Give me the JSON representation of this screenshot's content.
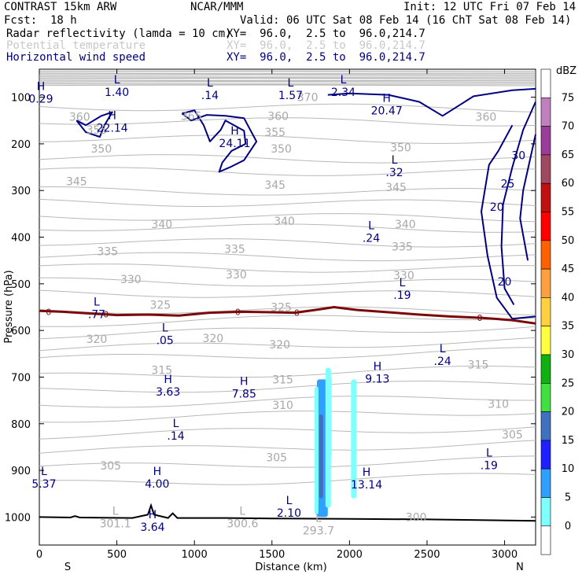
{
  "header": {
    "model": "CONTRAST 15km ARW",
    "org": "NCAR/MMM",
    "init": "Init: 12 UTC Fri 07 Feb 14",
    "fcst_label": "Fcst:",
    "fcst_value": "18 h",
    "valid": "Valid: 06 UTC Sat 08 Feb 14 (16 ChT Sat 08 Feb 14)",
    "fields": [
      {
        "name": "Radar reflectivity (lamda = 10 cm)",
        "xy": "XY=  96.0,  2.5 to  96.0,214.7",
        "color": "#000000"
      },
      {
        "name": "Potential temperature",
        "xy": "XY=  96.0,  2.5 to  96.0,214.7",
        "color": "#c8c8c8"
      },
      {
        "name": "Horizontal wind speed",
        "xy": "XY=  96.0,  2.5 to  96.0,214.7",
        "color": "#000080"
      }
    ]
  },
  "chart_data": {
    "type": "cross-section",
    "xlabel": "Distance (km)",
    "ylabel": "Pressure (hPa)",
    "xlim": [
      0,
      3200
    ],
    "ylim": [
      1060,
      40
    ],
    "xticks": [
      "0",
      "500",
      "1000",
      "1500",
      "2000",
      "2500",
      "3000"
    ],
    "xtick_values": [
      0,
      500,
      1000,
      1500,
      2000,
      2500,
      3000
    ],
    "yticks": [
      "100",
      "200",
      "300",
      "400",
      "500",
      "600",
      "700",
      "800",
      "900",
      "1000"
    ],
    "ytick_values": [
      100,
      200,
      300,
      400,
      500,
      600,
      700,
      800,
      900,
      1000
    ],
    "x_ends": [
      "S",
      "N"
    ],
    "colorbar": {
      "unit": "dBZ",
      "levels": [
        "75",
        "70",
        "65",
        "60",
        "55",
        "50",
        "45",
        "40",
        "35",
        "30",
        "25",
        "20",
        "15",
        "10",
        "5",
        "0"
      ],
      "colors": [
        "#ffffff",
        "#c080c0",
        "#9a3c9a",
        "#a04860",
        "#c01010",
        "#ff0000",
        "#ff6000",
        "#ffa040",
        "#ffd040",
        "#ffff40",
        "#10b010",
        "#40e040",
        "#4070c0",
        "#2020ff",
        "#30a0ff",
        "#80ffff",
        "#ffffff"
      ]
    },
    "theta_labels": [
      {
        "t": "360",
        "x": 260,
        "p": 142
      },
      {
        "t": "365",
        "x": 980,
        "p": 140
      },
      {
        "t": "360",
        "x": 1540,
        "p": 140
      },
      {
        "t": "370",
        "x": 1730,
        "p": 100
      },
      {
        "t": "360",
        "x": 2880,
        "p": 142
      },
      {
        "t": "355",
        "x": 370,
        "p": 170
      },
      {
        "t": "355",
        "x": 1520,
        "p": 175
      },
      {
        "t": "350",
        "x": 400,
        "p": 210
      },
      {
        "t": "350",
        "x": 1560,
        "p": 210
      },
      {
        "t": "350",
        "x": 2330,
        "p": 208
      },
      {
        "t": "345",
        "x": 240,
        "p": 280
      },
      {
        "t": "345",
        "x": 1520,
        "p": 288
      },
      {
        "t": "345",
        "x": 2300,
        "p": 293
      },
      {
        "t": "340",
        "x": 790,
        "p": 372
      },
      {
        "t": "340",
        "x": 1580,
        "p": 365
      },
      {
        "t": "340",
        "x": 2360,
        "p": 372
      },
      {
        "t": "335",
        "x": 440,
        "p": 430
      },
      {
        "t": "335",
        "x": 1260,
        "p": 425
      },
      {
        "t": "335",
        "x": 2340,
        "p": 420
      },
      {
        "t": "330",
        "x": 590,
        "p": 490
      },
      {
        "t": "330",
        "x": 1270,
        "p": 480
      },
      {
        "t": "330",
        "x": 2350,
        "p": 482
      },
      {
        "t": "325",
        "x": 780,
        "p": 545
      },
      {
        "t": "325",
        "x": 1560,
        "p": 550
      },
      {
        "t": "320",
        "x": 370,
        "p": 618
      },
      {
        "t": "320",
        "x": 1120,
        "p": 617
      },
      {
        "t": "320",
        "x": 1550,
        "p": 630
      },
      {
        "t": "315",
        "x": 790,
        "p": 685
      },
      {
        "t": "315",
        "x": 1570,
        "p": 705
      },
      {
        "t": "315",
        "x": 2830,
        "p": 673
      },
      {
        "t": "310",
        "x": 1570,
        "p": 760
      },
      {
        "t": "310",
        "x": 2960,
        "p": 757
      },
      {
        "t": "305",
        "x": 3050,
        "p": 823
      },
      {
        "t": "305",
        "x": 1530,
        "p": 872
      },
      {
        "t": "305",
        "x": 460,
        "p": 890
      },
      {
        "t": "300",
        "x": 2430,
        "p": 1000
      }
    ],
    "extrema": [
      {
        "k": "H",
        "v": "0.29",
        "x": 10,
        "p": 90
      },
      {
        "k": "L",
        "v": "1.40",
        "x": 500,
        "p": 75
      },
      {
        "k": "L",
        "v": ".14",
        "x": 1100,
        "p": 82
      },
      {
        "k": "L",
        "v": "1.57",
        "x": 1620,
        "p": 82
      },
      {
        "k": "L",
        "v": "2.34",
        "x": 1960,
        "p": 75
      },
      {
        "k": "H",
        "v": "20.47",
        "x": 2240,
        "p": 115
      },
      {
        "k": "H",
        "v": "22.14",
        "x": 470,
        "p": 152
      },
      {
        "k": "H",
        "v": "24.11",
        "x": 1260,
        "p": 185
      },
      {
        "k": "L",
        "v": ".32",
        "x": 2290,
        "p": 247
      },
      {
        "k": "L",
        "v": ".24",
        "x": 2140,
        "p": 388
      },
      {
        "k": "L",
        "v": ".19",
        "x": 2340,
        "p": 510
      },
      {
        "k": "L",
        "v": ".77",
        "x": 370,
        "p": 552
      },
      {
        "k": "L",
        "v": ".05",
        "x": 810,
        "p": 607
      },
      {
        "k": "L",
        "v": ".24",
        "x": 2600,
        "p": 652
      },
      {
        "k": "H",
        "v": "9.13",
        "x": 2180,
        "p": 690
      },
      {
        "k": "H",
        "v": "3.63",
        "x": 830,
        "p": 718
      },
      {
        "k": "H",
        "v": "7.85",
        "x": 1320,
        "p": 722
      },
      {
        "k": "L",
        "v": ".14",
        "x": 880,
        "p": 812
      },
      {
        "k": "L",
        "v": ".19",
        "x": 2900,
        "p": 875
      },
      {
        "k": "L",
        "v": "5.37",
        "x": 30,
        "p": 915
      },
      {
        "k": "H",
        "v": "4.00",
        "x": 760,
        "p": 915
      },
      {
        "k": "H",
        "v": "13.14",
        "x": 2110,
        "p": 917
      },
      {
        "k": "L",
        "v": "2.10",
        "x": 1610,
        "p": 977
      },
      {
        "k": "L",
        "v": "301.1",
        "x": 490,
        "p": 1000
      },
      {
        "k": "L",
        "v": "300.6",
        "x": 1310,
        "p": 1000
      },
      {
        "k": "L",
        "v": "293.7",
        "x": 1800,
        "p": 1015
      },
      {
        "k": "H",
        "v": "3.64",
        "x": 730,
        "p": 1008
      }
    ],
    "wind_labels": [
      {
        "t": "30",
        "x": 3090,
        "p": 225
      },
      {
        "t": "25",
        "x": 3020,
        "p": 285
      },
      {
        "t": "20",
        "x": 2950,
        "p": 335
      },
      {
        "t": "20",
        "x": 3000,
        "p": 495
      }
    ],
    "freezing_level_label": "0",
    "surface_pressure": [
      [
        0,
        1000
      ],
      [
        200,
        1001
      ],
      [
        230,
        998
      ],
      [
        260,
        1001
      ],
      [
        600,
        1002
      ],
      [
        700,
        995
      ],
      [
        720,
        975
      ],
      [
        740,
        995
      ],
      [
        830,
        1002
      ],
      [
        860,
        992
      ],
      [
        890,
        1002
      ],
      [
        1200,
        1002
      ],
      [
        1500,
        1003
      ],
      [
        2000,
        1004
      ],
      [
        2500,
        1005
      ],
      [
        3200,
        1008
      ]
    ]
  }
}
